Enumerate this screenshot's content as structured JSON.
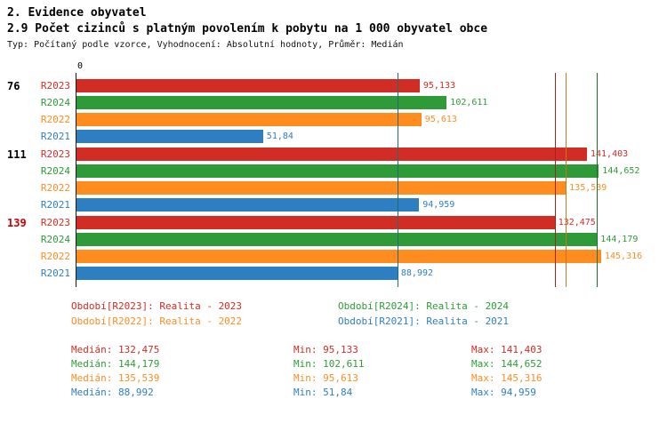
{
  "header": {
    "title": "2. Evidence obyvatel",
    "subtitle": "2.9 Počet cizinců s platným povolením k pobytu na 1 000 obyvatel obce",
    "meta": "Typ: Počítaný podle vzorce, Vyhodnocení: Absolutní hodnoty, Průměr: Medián"
  },
  "chart_data": {
    "type": "bar",
    "orientation": "horizontal",
    "title": "2.9 Počet cizinců s platným povolením k pobytu na 1 000 obyvatel obce",
    "xlim": [
      0,
      150
    ],
    "axis_origin_label": "0",
    "grid": false,
    "series": [
      {
        "id": "R2023",
        "name": "Realita - 2023",
        "color": "#d22d24",
        "line_color": "#a8221b"
      },
      {
        "id": "R2024",
        "name": "Realita - 2024",
        "color": "#2e9b38",
        "line_color": "#1d7027"
      },
      {
        "id": "R2022",
        "name": "Realita - 2022",
        "color": "#ff8c1f",
        "line_color": "#c9761a"
      },
      {
        "id": "R2021",
        "name": "Realita - 2021",
        "color": "#2e7fc1",
        "line_color": "#1d6f6f"
      }
    ],
    "groups": [
      {
        "label": "76",
        "label_color": "#000000",
        "bars": [
          {
            "series": "R2023",
            "value": 95.133,
            "display": "95,133"
          },
          {
            "series": "R2024",
            "value": 102.611,
            "display": "102,611"
          },
          {
            "series": "R2022",
            "value": 95.613,
            "display": "95,613"
          },
          {
            "series": "R2021",
            "value": 51.84,
            "display": "51,84"
          }
        ]
      },
      {
        "label": "111",
        "label_color": "#000000",
        "bars": [
          {
            "series": "R2023",
            "value": 141.403,
            "display": "141,403"
          },
          {
            "series": "R2024",
            "value": 144.652,
            "display": "144,652"
          },
          {
            "series": "R2022",
            "value": 135.539,
            "display": "135,539"
          },
          {
            "series": "R2021",
            "value": 94.959,
            "display": "94,959"
          }
        ]
      },
      {
        "label": "139",
        "label_color": "#cc0000",
        "bars": [
          {
            "series": "R2023",
            "value": 132.475,
            "display": "132,475"
          },
          {
            "series": "R2024",
            "value": 144.179,
            "display": "144,179"
          },
          {
            "series": "R2022",
            "value": 145.316,
            "display": "145,316"
          },
          {
            "series": "R2021",
            "value": 88.992,
            "display": "88,992"
          }
        ]
      }
    ],
    "median_lines": [
      {
        "series": "R2023",
        "value": 132.475
      },
      {
        "series": "R2024",
        "value": 144.179
      },
      {
        "series": "R2022",
        "value": 135.539
      },
      {
        "series": "R2021",
        "value": 88.992
      }
    ]
  },
  "legend": {
    "rows": [
      [
        {
          "series": "R2023",
          "text": "Období[R2023]: Realita - 2023"
        },
        {
          "series": "R2024",
          "text": "Období[R2024]: Realita - 2024"
        }
      ],
      [
        {
          "series": "R2022",
          "text": "Období[R2022]: Realita - 2022"
        },
        {
          "series": "R2021",
          "text": "Období[R2021]: Realita - 2021"
        }
      ]
    ]
  },
  "stats": {
    "rows": [
      {
        "series": "R2023",
        "median": "Medián: 132,475",
        "min": "Min: 95,133",
        "max": "Max: 141,403"
      },
      {
        "series": "R2024",
        "median": "Medián: 144,179",
        "min": "Min: 102,611",
        "max": "Max: 144,652"
      },
      {
        "series": "R2022",
        "median": "Medián: 135,539",
        "min": "Min: 95,613",
        "max": "Max: 145,316"
      },
      {
        "series": "R2021",
        "median": "Medián: 88,992",
        "min": "Min: 51,84",
        "max": "Max: 94,959"
      }
    ]
  }
}
